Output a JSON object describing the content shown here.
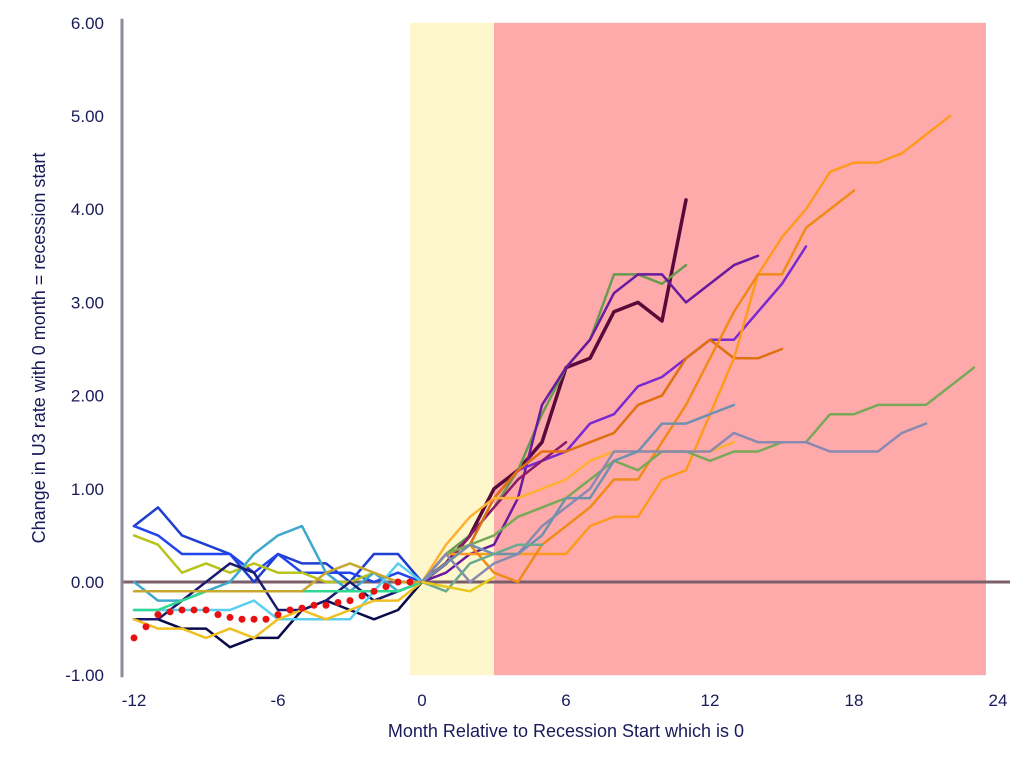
{
  "chart_data": {
    "type": "line",
    "xlabel": "Month Relative to Recession Start which is 0",
    "ylabel": "Change in U3 rate  with 0 month = recession start",
    "xlim": [
      -12.5,
      24
    ],
    "ylim": [
      -1,
      6
    ],
    "x_ticks": [
      -12,
      -6,
      0,
      6,
      12,
      18,
      24
    ],
    "x_tick_labels": [
      "-12",
      "-6",
      "0",
      "6",
      "12",
      "18",
      "24"
    ],
    "y_ticks": [
      -1,
      0,
      1,
      2,
      3,
      4,
      5,
      6
    ],
    "y_tick_labels": [
      "-1.00",
      "0.00",
      "1.00",
      "2.00",
      "3.00",
      "4.00",
      "5.00",
      "6.00"
    ],
    "shaded_regions": [
      {
        "from": -0.5,
        "to": 3,
        "color": "#fff7cc"
      },
      {
        "from": 3,
        "to": 23.5,
        "color": "#ffaaaa"
      }
    ],
    "zero_line_color": "#7a5f6a",
    "series": [
      {
        "color": "#1f3fd0",
        "width": 2.5,
        "x": [
          -12,
          -11,
          -10,
          -9,
          -8,
          -7,
          -6,
          -5,
          -4,
          -3,
          -2,
          -1,
          0
        ],
        "y": [
          0.6,
          0.8,
          0.5,
          0.4,
          0.3,
          0.0,
          0.3,
          0.2,
          0.2,
          0.0,
          0.3,
          0.3,
          0.0
        ]
      },
      {
        "color": "#2244ee",
        "width": 2.5,
        "x": [
          -12,
          -11,
          -10,
          -9,
          -8,
          -7,
          -6,
          -5,
          -4,
          -3,
          -2,
          -1,
          0
        ],
        "y": [
          0.6,
          0.5,
          0.3,
          0.3,
          0.3,
          0.1,
          0.3,
          0.1,
          0.1,
          0.1,
          0.0,
          0.1,
          0.0
        ]
      },
      {
        "color": "#b8c41a",
        "width": 2.5,
        "x": [
          -12,
          -11,
          -10,
          -9,
          -8,
          -7,
          -6,
          -5,
          -4,
          -3,
          -2,
          -1,
          0
        ],
        "y": [
          0.5,
          0.4,
          0.1,
          0.2,
          0.1,
          0.2,
          0.1,
          0.1,
          0.0,
          0.0,
          0.1,
          0.0,
          0.0
        ]
      },
      {
        "color": "#40a8cc",
        "width": 2.5,
        "x": [
          -12,
          -11,
          -10,
          -9,
          -8,
          -7,
          -6,
          -5,
          -4,
          -3,
          -2,
          -1,
          0
        ],
        "y": [
          0.0,
          -0.2,
          -0.2,
          -0.1,
          0.0,
          0.3,
          0.5,
          0.6,
          0.1,
          -0.1,
          0.1,
          -0.1,
          0.0
        ]
      },
      {
        "color": "#0a0a4a",
        "width": 2.5,
        "x": [
          -12,
          -11,
          -10,
          -9,
          -8,
          -7,
          -6,
          -5,
          -4,
          -3,
          -2,
          -1,
          0
        ],
        "y": [
          -0.4,
          -0.4,
          -0.5,
          -0.5,
          -0.7,
          -0.6,
          -0.6,
          -0.3,
          -0.2,
          -0.3,
          -0.4,
          -0.3,
          0.0
        ]
      },
      {
        "color": "#1a1a70",
        "width": 2.5,
        "x": [
          -12,
          -11,
          -10,
          -9,
          -8,
          -7,
          -6,
          -5,
          -4,
          -3,
          -2,
          -1,
          0
        ],
        "y": [
          -0.4,
          -0.4,
          -0.2,
          0.0,
          0.2,
          0.1,
          -0.3,
          -0.3,
          -0.2,
          0.0,
          -0.2,
          -0.1,
          0.0
        ]
      },
      {
        "color": "#5ad0f0",
        "width": 2.5,
        "x": [
          -12,
          -11,
          -10,
          -9,
          -8,
          -7,
          -6,
          -5,
          -4,
          -3,
          -2,
          -1,
          0
        ],
        "y": [
          -0.3,
          -0.3,
          -0.3,
          -0.3,
          -0.3,
          -0.2,
          -0.4,
          -0.4,
          -0.4,
          -0.4,
          -0.1,
          0.2,
          0.0
        ]
      },
      {
        "color": "#f0c020",
        "width": 2.5,
        "x": [
          -12,
          -11,
          -10,
          -9,
          -8,
          -7,
          -6,
          -5,
          -4,
          -3,
          -2,
          -1,
          0
        ],
        "y": [
          -0.4,
          -0.5,
          -0.5,
          -0.6,
          -0.5,
          -0.6,
          -0.4,
          -0.3,
          -0.4,
          -0.3,
          -0.2,
          -0.2,
          0.0
        ]
      },
      {
        "color": "#30d890",
        "width": 2.5,
        "x": [
          -12,
          -11,
          -10,
          -9,
          -8,
          -7,
          -6,
          -5,
          -4,
          -3,
          -2,
          -1,
          0
        ],
        "y": [
          -0.3,
          -0.3,
          -0.2,
          -0.1,
          -0.1,
          -0.1,
          -0.1,
          -0.1,
          -0.1,
          -0.1,
          -0.1,
          -0.1,
          0.0
        ]
      },
      {
        "color": "#c8a830",
        "width": 2.5,
        "x": [
          -12,
          -11,
          -10,
          -9,
          -8,
          -7,
          -6,
          -5,
          -4,
          -3,
          -2,
          -1,
          0
        ],
        "y": [
          -0.1,
          -0.1,
          -0.1,
          -0.1,
          -0.1,
          -0.1,
          -0.1,
          -0.1,
          0.1,
          0.2,
          0.1,
          0.0,
          0.0
        ]
      },
      {
        "color": "#5a0a3a",
        "width": 3.5,
        "x": [
          0,
          1,
          2,
          3,
          4,
          5,
          6,
          7,
          8,
          9,
          10,
          11
        ],
        "y": [
          0.0,
          0.2,
          0.5,
          1.0,
          1.2,
          1.5,
          2.3,
          2.4,
          2.9,
          3.0,
          2.8,
          4.1
        ]
      },
      {
        "color": "#6a9a50",
        "width": 2.5,
        "x": [
          0,
          1,
          2,
          3,
          4,
          5,
          6,
          7,
          8,
          9,
          10,
          11
        ],
        "y": [
          0.0,
          0.3,
          0.5,
          0.8,
          1.2,
          1.8,
          2.3,
          2.6,
          3.3,
          3.3,
          3.2,
          3.4
        ]
      },
      {
        "color": "#6a1aa0",
        "width": 2.5,
        "x": [
          0,
          1,
          2,
          3,
          4,
          5,
          6,
          7,
          8,
          9,
          10,
          11,
          12,
          13,
          14
        ],
        "y": [
          0.0,
          0.1,
          0.3,
          0.4,
          0.9,
          1.9,
          2.3,
          2.6,
          3.1,
          3.3,
          3.3,
          3.0,
          3.2,
          3.4,
          3.5
        ]
      },
      {
        "color": "#7a2ad0",
        "width": 2.5,
        "x": [
          0,
          1,
          2,
          3,
          4,
          5,
          6,
          7,
          8,
          9,
          10,
          11,
          12,
          13,
          14,
          15,
          16
        ],
        "y": [
          0.0,
          0.2,
          0.4,
          0.9,
          1.2,
          1.3,
          1.4,
          1.7,
          1.8,
          2.1,
          2.2,
          2.4,
          2.6,
          2.6,
          2.9,
          3.2,
          3.6
        ]
      },
      {
        "color": "#8a1a6a",
        "width": 2.5,
        "x": [
          0,
          1,
          2,
          3,
          4,
          5,
          6
        ],
        "y": [
          0.0,
          0.2,
          0.5,
          0.8,
          1.1,
          1.3,
          1.5
        ]
      },
      {
        "color": "#e07010",
        "width": 2.5,
        "x": [
          0,
          1,
          2,
          3,
          4,
          5,
          6,
          7,
          8,
          9,
          10,
          11,
          12,
          13,
          14,
          15
        ],
        "y": [
          0.0,
          0.2,
          0.4,
          0.9,
          1.2,
          1.4,
          1.4,
          1.5,
          1.6,
          1.9,
          2.0,
          2.4,
          2.6,
          2.4,
          2.4,
          2.5
        ]
      },
      {
        "color": "#ff9a20",
        "width": 2.5,
        "x": [
          0,
          1,
          2,
          3,
          4,
          5,
          6,
          7,
          8,
          9,
          10,
          11,
          12,
          13,
          14,
          15,
          16,
          17,
          18,
          19,
          20,
          21,
          22
        ],
        "y": [
          0.0,
          0.3,
          0.3,
          0.3,
          0.3,
          0.3,
          0.3,
          0.6,
          0.7,
          0.7,
          1.1,
          1.2,
          1.8,
          2.4,
          3.3,
          3.7,
          4.0,
          4.4,
          4.5,
          4.5,
          4.6,
          4.8,
          5.0
        ]
      },
      {
        "color": "#f08a18",
        "width": 2.5,
        "x": [
          0,
          1,
          2,
          3,
          4,
          5,
          6,
          7,
          8,
          9,
          10,
          11,
          12,
          13,
          14,
          15,
          16,
          17,
          18
        ],
        "y": [
          0.0,
          0.3,
          0.4,
          0.1,
          0.0,
          0.4,
          0.6,
          0.8,
          1.1,
          1.1,
          1.5,
          1.9,
          2.4,
          2.9,
          3.3,
          3.3,
          3.8,
          4.0,
          4.2
        ]
      },
      {
        "color": "#ffb030",
        "width": 2.5,
        "x": [
          0,
          1,
          2,
          3,
          4,
          5,
          6,
          7,
          8,
          9,
          10,
          11,
          12,
          13
        ],
        "y": [
          0.0,
          0.4,
          0.7,
          0.9,
          0.9,
          1.0,
          1.1,
          1.3,
          1.4,
          1.4,
          1.4,
          1.4,
          1.4,
          1.5
        ]
      },
      {
        "color": "#78a858",
        "width": 2.5,
        "x": [
          0,
          1,
          2,
          3,
          4,
          5,
          6,
          7,
          8,
          9,
          10,
          11,
          12,
          13,
          14,
          15,
          16,
          17,
          18,
          19,
          20,
          21,
          22,
          23
        ],
        "y": [
          0.0,
          0.3,
          0.4,
          0.5,
          0.7,
          0.8,
          0.9,
          1.1,
          1.3,
          1.2,
          1.4,
          1.4,
          1.3,
          1.4,
          1.4,
          1.5,
          1.5,
          1.8,
          1.8,
          1.9,
          1.9,
          1.9,
          2.1,
          2.3
        ]
      },
      {
        "color": "#8a8ab0",
        "width": 2.5,
        "x": [
          0,
          1,
          2,
          3,
          4,
          5,
          6,
          7,
          8,
          9,
          10,
          11,
          12,
          13,
          14,
          15,
          16,
          17,
          18,
          19,
          20,
          21
        ],
        "y": [
          0.0,
          0.3,
          0.0,
          0.2,
          0.3,
          0.6,
          0.8,
          1.0,
          1.4,
          1.4,
          1.4,
          1.4,
          1.4,
          1.6,
          1.5,
          1.5,
          1.5,
          1.4,
          1.4,
          1.4,
          1.6,
          1.7
        ]
      },
      {
        "color": "#7090b0",
        "width": 2.5,
        "x": [
          0,
          1,
          2,
          3,
          4,
          5,
          6,
          7,
          8,
          9,
          10,
          11,
          12,
          13
        ],
        "y": [
          0.0,
          0.2,
          0.4,
          0.3,
          0.3,
          0.5,
          0.9,
          0.9,
          1.3,
          1.4,
          1.7,
          1.7,
          1.8,
          1.9
        ]
      },
      {
        "color": "#6aaa90",
        "width": 2.5,
        "x": [
          0,
          1,
          2,
          3,
          4,
          5
        ],
        "y": [
          0.0,
          -0.1,
          0.2,
          0.3,
          0.4,
          0.4
        ]
      },
      {
        "color": "#e8c818",
        "width": 2.5,
        "x": [
          0,
          1,
          2,
          3
        ],
        "y": [
          0.0,
          -0.05,
          -0.1,
          0.05
        ]
      },
      {
        "color": "#e81010",
        "width": 6,
        "dotted": true,
        "x": [
          -12,
          -11.5,
          -11,
          -10.5,
          -10,
          -9.5,
          -9,
          -8.5,
          -8,
          -7.5,
          -7,
          -6.5,
          -6,
          -5.5,
          -5,
          -4.5,
          -4,
          -3.5,
          -3,
          -2.5,
          -2,
          -1.5,
          -1,
          -0.5
        ],
        "y": [
          -0.6,
          -0.48,
          -0.35,
          -0.32,
          -0.3,
          -0.3,
          -0.3,
          -0.35,
          -0.38,
          -0.4,
          -0.4,
          -0.4,
          -0.35,
          -0.3,
          -0.28,
          -0.25,
          -0.25,
          -0.22,
          -0.2,
          -0.15,
          -0.1,
          -0.05,
          0.0,
          0.0
        ]
      }
    ]
  }
}
